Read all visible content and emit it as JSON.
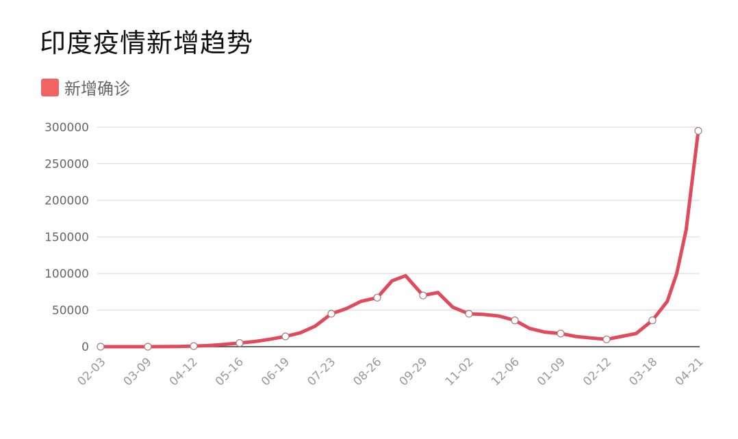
{
  "chart_data": {
    "type": "line",
    "title": "印度疫情新增趋势",
    "legend": {
      "position": "top-left",
      "entries": [
        {
          "name": "新增确诊",
          "color": "#f06464"
        }
      ]
    },
    "line_color": "#e04a5c",
    "ylim": [
      0,
      300000
    ],
    "yticks": [
      "0",
      "50000",
      "100000",
      "150000",
      "200000",
      "250000",
      "300000"
    ],
    "grid": true,
    "xticks": [
      "02-03",
      "03-09",
      "04-12",
      "05-16",
      "06-19",
      "07-23",
      "08-26",
      "09-29",
      "11-02",
      "12-06",
      "01-09",
      "02-12",
      "03-18",
      "04-21"
    ],
    "series": [
      {
        "name": "新增确诊",
        "x": [
          "2020-02-03",
          "2020-02-14",
          "2020-02-25",
          "2020-03-09",
          "2020-03-20",
          "2020-04-01",
          "2020-04-12",
          "2020-04-23",
          "2020-05-04",
          "2020-05-16",
          "2020-05-27",
          "2020-06-07",
          "2020-06-19",
          "2020-06-30",
          "2020-07-11",
          "2020-07-23",
          "2020-08-03",
          "2020-08-14",
          "2020-08-26",
          "2020-09-06",
          "2020-09-16",
          "2020-09-29",
          "2020-10-10",
          "2020-10-21",
          "2020-11-02",
          "2020-11-13",
          "2020-11-24",
          "2020-12-06",
          "2020-12-17",
          "2020-12-28",
          "2021-01-09",
          "2021-01-20",
          "2021-01-31",
          "2021-02-12",
          "2021-02-23",
          "2021-03-06",
          "2021-03-18",
          "2021-03-29",
          "2021-04-05",
          "2021-04-12",
          "2021-04-17",
          "2021-04-21"
        ],
        "y": [
          0,
          0,
          0,
          0,
          50,
          300,
          800,
          1500,
          3000,
          5000,
          7000,
          10000,
          14000,
          19000,
          28000,
          45000,
          52000,
          62000,
          67000,
          90000,
          97000,
          70000,
          74000,
          54000,
          45000,
          44000,
          42000,
          36000,
          25000,
          20000,
          18000,
          14000,
          12000,
          10000,
          14000,
          18000,
          36000,
          62000,
          100000,
          160000,
          235000,
          295000
        ]
      }
    ],
    "markers_at": [
      "2020-02-03",
      "2020-03-09",
      "2020-04-12",
      "2020-05-16",
      "2020-06-19",
      "2020-07-23",
      "2020-08-26",
      "2020-09-29",
      "2020-11-02",
      "2020-12-06",
      "2021-01-09",
      "2021-02-12",
      "2021-03-18",
      "2021-04-21"
    ]
  }
}
